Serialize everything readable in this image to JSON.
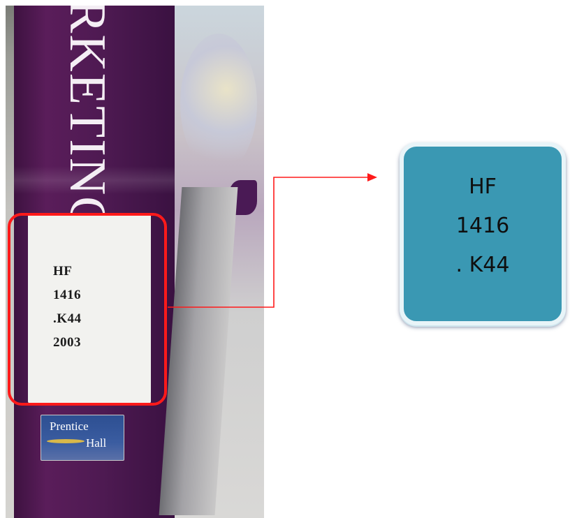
{
  "book_spine": {
    "title_fragment": "RKETING",
    "call_number_label": [
      "HF",
      "1416",
      ".K44",
      "2003"
    ],
    "publisher_logo": [
      "Prentice",
      "Hall"
    ]
  },
  "zoom_callout": {
    "lines": [
      "HF",
      "1416",
      ". K44"
    ]
  },
  "colors": {
    "highlight": "#ff1a1a",
    "callout_fill": "#3a98b3",
    "spine": "#4e1a52"
  }
}
